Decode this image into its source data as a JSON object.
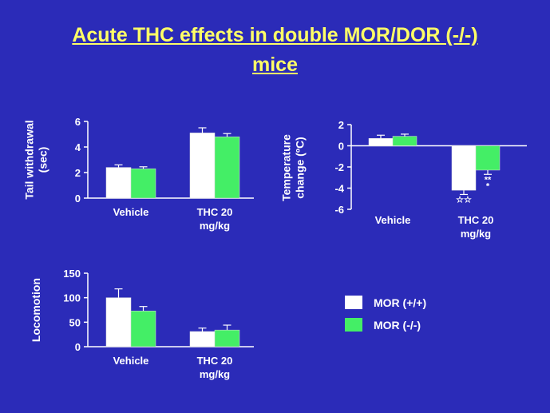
{
  "title_line1": "Acute THC effects in double MOR/DOR (-/-)",
  "title_line2": "mice",
  "legend": [
    {
      "label": "MOR (+/+)",
      "color": "#ffffff"
    },
    {
      "label": "MOR (-/-)",
      "color": "#44ee66"
    }
  ],
  "chart_data": [
    {
      "type": "bar",
      "ylabel_lines": [
        "Tail withdrawal",
        "(sec)"
      ],
      "categories": [
        [
          "Vehicle"
        ],
        [
          "THC 20",
          "mg/kg"
        ]
      ],
      "series": [
        {
          "name": "MOR (+/+)",
          "values": [
            2.4,
            5.1
          ],
          "errors": [
            0.2,
            0.4
          ]
        },
        {
          "name": "MOR (-/-)",
          "values": [
            2.3,
            4.8
          ],
          "errors": [
            0.15,
            0.25
          ]
        }
      ],
      "yticks": [
        0,
        2,
        4,
        6
      ],
      "ylim": [
        0,
        6
      ],
      "annotations": []
    },
    {
      "type": "bar",
      "ylabel_lines": [
        "Temperature",
        "change (ºC)"
      ],
      "categories": [
        [
          "Vehicle"
        ],
        [
          "THC 20",
          "mg/kg"
        ]
      ],
      "series": [
        {
          "name": "MOR (+/+)",
          "values": [
            0.7,
            -4.2
          ],
          "errors": [
            0.3,
            0.4
          ]
        },
        {
          "name": "MOR (-/-)",
          "values": [
            0.9,
            -2.3
          ],
          "errors": [
            0.2,
            0.4
          ]
        }
      ],
      "yticks": [
        2,
        0,
        -2,
        -4,
        -6
      ],
      "ylim": [
        -6,
        2
      ],
      "annotations": [
        {
          "series": 0,
          "category": 1,
          "text": "☆☆"
        },
        {
          "series": 1,
          "category": 1,
          "text": "**"
        },
        {
          "series": 1,
          "category": 1,
          "text": "*"
        }
      ]
    },
    {
      "type": "bar",
      "ylabel_lines": [
        "Locomotion"
      ],
      "categories": [
        [
          "Vehicle"
        ],
        [
          "THC 20",
          "mg/kg"
        ]
      ],
      "series": [
        {
          "name": "MOR (+/+)",
          "values": [
            100,
            31
          ],
          "errors": [
            18,
            7
          ]
        },
        {
          "name": "MOR (-/-)",
          "values": [
            73,
            34
          ],
          "errors": [
            9,
            10
          ]
        }
      ],
      "yticks": [
        0,
        50,
        100,
        150
      ],
      "ylim": [
        0,
        150
      ],
      "annotations": []
    }
  ]
}
